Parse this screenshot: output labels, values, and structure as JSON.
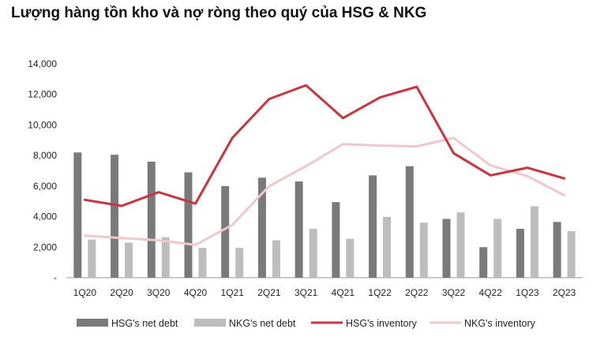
{
  "chart_data": {
    "type": "bar",
    "title": "Lượng hàng tồn kho và nợ ròng theo quý của HSG & NKG",
    "categories": [
      "1Q20",
      "2Q20",
      "3Q20",
      "4Q20",
      "1Q21",
      "2Q21",
      "3Q21",
      "4Q21",
      "1Q22",
      "2Q22",
      "3Q22",
      "4Q22",
      "1Q23",
      "2Q23"
    ],
    "yticks": [
      "-",
      "2,000",
      "4,000",
      "6,000",
      "8,000",
      "10,000",
      "12,000",
      "14,000"
    ],
    "ylim": [
      0,
      14000
    ],
    "grid": false,
    "legend_position": "bottom",
    "series": [
      {
        "name": "HSG's net debt",
        "kind": "bar",
        "color": "#7a7a7a",
        "values": [
          8200,
          8050,
          7600,
          6900,
          6000,
          6550,
          6300,
          4950,
          6700,
          7300,
          3850,
          2000,
          3200,
          3650
        ]
      },
      {
        "name": "NKG's net debt",
        "kind": "bar",
        "color": "#bdbdbd",
        "values": [
          2500,
          2300,
          2650,
          1950,
          1950,
          2450,
          3200,
          2550,
          3980,
          3600,
          4280,
          3850,
          4680,
          3050
        ]
      },
      {
        "name": "HSG's inventory",
        "kind": "line",
        "color": "#d0313d",
        "values": [
          5100,
          4700,
          5600,
          4850,
          9150,
          11700,
          12600,
          10450,
          11800,
          12500,
          8150,
          6700,
          7200,
          6500
        ]
      },
      {
        "name": "NKG's inventory",
        "kind": "line",
        "color": "#f2c7cb",
        "values": [
          2750,
          2600,
          2450,
          2150,
          3450,
          6000,
          7300,
          8750,
          8650,
          8600,
          9150,
          7350,
          6650,
          5400
        ]
      }
    ]
  }
}
